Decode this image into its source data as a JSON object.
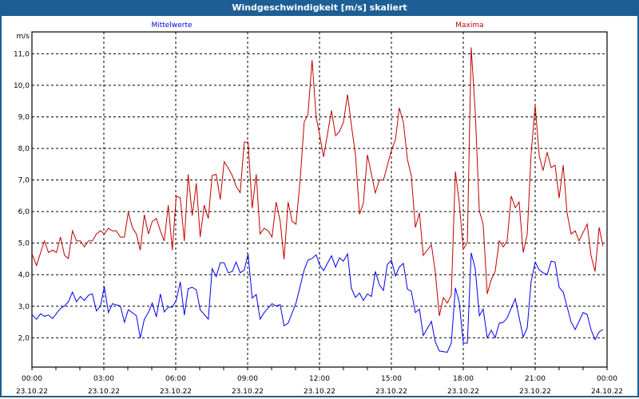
{
  "window": {
    "title": "Windgeschwindigkeit [m/s] skaliert"
  },
  "colors": {
    "titlebar": "#1d5f94",
    "mean": "#0000ee",
    "max": "#c00000"
  },
  "chart_data": {
    "type": "line",
    "title": "Windgeschwindigkeit [m/s] skaliert",
    "ylabel": "m/s",
    "xlabel": "",
    "ylim": [
      1.0,
      11.7
    ],
    "xlim_hours": [
      0,
      24
    ],
    "grid": true,
    "yticks": [
      "2,0",
      "3,0",
      "4,0",
      "5,0",
      "6,0",
      "7,0",
      "8,0",
      "9,0",
      "10,0",
      "11,0"
    ],
    "ytick_values": [
      2,
      3,
      4,
      5,
      6,
      7,
      8,
      9,
      10,
      11
    ],
    "xticks": [
      {
        "time": "00:00",
        "date": "23.10.22",
        "h": 0
      },
      {
        "time": "03:00",
        "date": "23.10.22",
        "h": 3
      },
      {
        "time": "06:00",
        "date": "23.10.22",
        "h": 6
      },
      {
        "time": "09:00",
        "date": "23.10.22",
        "h": 9
      },
      {
        "time": "12:00",
        "date": "23.10.22",
        "h": 12
      },
      {
        "time": "15:00",
        "date": "23.10.22",
        "h": 15
      },
      {
        "time": "18:00",
        "date": "23.10.22",
        "h": 18
      },
      {
        "time": "21:00",
        "date": "23.10.22",
        "h": 21
      },
      {
        "time": "00:00",
        "date": "24.10.22",
        "h": 24
      }
    ],
    "series": [
      {
        "name": "Mittelwerte",
        "color": "#0000ee",
        "points": [
          [
            0.02,
            2.72
          ],
          [
            0.19,
            2.59
          ],
          [
            0.36,
            2.76
          ],
          [
            0.52,
            2.68
          ],
          [
            0.69,
            2.72
          ],
          [
            0.86,
            2.61
          ],
          [
            1.19,
            2.93
          ],
          [
            1.36,
            3.01
          ],
          [
            1.52,
            3.14
          ],
          [
            1.69,
            3.45
          ],
          [
            1.86,
            3.14
          ],
          [
            2.02,
            3.31
          ],
          [
            2.19,
            3.18
          ],
          [
            2.36,
            3.35
          ],
          [
            2.52,
            3.39
          ],
          [
            2.69,
            2.85
          ],
          [
            2.86,
            3.01
          ],
          [
            3.02,
            3.62
          ],
          [
            3.19,
            2.8
          ],
          [
            3.36,
            3.08
          ],
          [
            3.69,
            3.01
          ],
          [
            3.86,
            2.49
          ],
          [
            4.02,
            2.89
          ],
          [
            4.36,
            2.7
          ],
          [
            4.52,
            1.99
          ],
          [
            4.69,
            2.59
          ],
          [
            4.86,
            2.8
          ],
          [
            5.02,
            3.1
          ],
          [
            5.19,
            2.66
          ],
          [
            5.36,
            3.39
          ],
          [
            5.52,
            2.82
          ],
          [
            5.69,
            2.97
          ],
          [
            5.86,
            2.97
          ],
          [
            6.02,
            3.18
          ],
          [
            6.19,
            3.77
          ],
          [
            6.36,
            2.72
          ],
          [
            6.52,
            3.56
          ],
          [
            6.69,
            3.6
          ],
          [
            6.86,
            3.52
          ],
          [
            7.02,
            2.89
          ],
          [
            7.36,
            2.59
          ],
          [
            7.52,
            4.19
          ],
          [
            7.69,
            3.94
          ],
          [
            7.86,
            4.38
          ],
          [
            8.02,
            4.38
          ],
          [
            8.19,
            4.06
          ],
          [
            8.36,
            4.1
          ],
          [
            8.52,
            4.4
          ],
          [
            8.69,
            4.06
          ],
          [
            8.86,
            4.15
          ],
          [
            9.02,
            4.65
          ],
          [
            9.19,
            3.26
          ],
          [
            9.36,
            3.37
          ],
          [
            9.52,
            2.59
          ],
          [
            9.69,
            2.8
          ],
          [
            10.02,
            3.08
          ],
          [
            10.19,
            3.01
          ],
          [
            10.36,
            3.05
          ],
          [
            10.52,
            2.38
          ],
          [
            10.69,
            2.46
          ],
          [
            11.02,
            3.1
          ],
          [
            11.36,
            4.15
          ],
          [
            11.52,
            4.46
          ],
          [
            11.69,
            4.51
          ],
          [
            11.86,
            4.63
          ],
          [
            12.0,
            4.32
          ],
          [
            12.17,
            4.13
          ],
          [
            12.5,
            4.6
          ],
          [
            12.67,
            4.24
          ],
          [
            12.83,
            4.53
          ],
          [
            13.0,
            4.43
          ],
          [
            13.17,
            4.66
          ],
          [
            13.33,
            3.57
          ],
          [
            13.5,
            3.28
          ],
          [
            13.67,
            3.42
          ],
          [
            13.83,
            3.18
          ],
          [
            14.0,
            3.39
          ],
          [
            14.17,
            3.31
          ],
          [
            14.33,
            4.1
          ],
          [
            14.5,
            3.68
          ],
          [
            14.67,
            3.5
          ],
          [
            14.83,
            4.32
          ],
          [
            15.0,
            4.46
          ],
          [
            15.17,
            3.96
          ],
          [
            15.33,
            4.24
          ],
          [
            15.5,
            4.36
          ],
          [
            15.67,
            3.54
          ],
          [
            15.83,
            3.48
          ],
          [
            16.0,
            2.8
          ],
          [
            16.17,
            2.91
          ],
          [
            16.33,
            2.07
          ],
          [
            16.67,
            2.52
          ],
          [
            16.83,
            1.88
          ],
          [
            17.0,
            1.58
          ],
          [
            17.33,
            1.54
          ],
          [
            17.5,
            1.83
          ],
          [
            17.67,
            3.58
          ],
          [
            17.83,
            3.14
          ],
          [
            18.0,
            1.83
          ],
          [
            18.17,
            1.83
          ],
          [
            18.33,
            4.69
          ],
          [
            18.5,
            4.19
          ],
          [
            18.67,
            2.7
          ],
          [
            18.83,
            2.91
          ],
          [
            19.0,
            2.0
          ],
          [
            19.17,
            2.24
          ],
          [
            19.33,
            2.0
          ],
          [
            19.5,
            2.46
          ],
          [
            19.67,
            2.49
          ],
          [
            19.83,
            2.63
          ],
          [
            20.17,
            3.24
          ],
          [
            20.5,
            2.02
          ],
          [
            20.67,
            2.32
          ],
          [
            20.83,
            3.77
          ],
          [
            21.0,
            4.4
          ],
          [
            21.17,
            4.15
          ],
          [
            21.33,
            4.06
          ],
          [
            21.5,
            4.0
          ],
          [
            21.67,
            4.43
          ],
          [
            21.83,
            4.4
          ],
          [
            22.0,
            3.6
          ],
          [
            22.17,
            3.45
          ],
          [
            22.5,
            2.5
          ],
          [
            22.67,
            2.26
          ],
          [
            23.0,
            2.8
          ],
          [
            23.17,
            2.74
          ],
          [
            23.33,
            2.26
          ],
          [
            23.5,
            1.94
          ],
          [
            23.67,
            2.19
          ],
          [
            23.83,
            2.26
          ]
        ]
      },
      {
        "name": "Maxima",
        "color": "#c00000",
        "points": [
          [
            0.02,
            4.63
          ],
          [
            0.19,
            4.29
          ],
          [
            0.52,
            5.07
          ],
          [
            0.69,
            4.7
          ],
          [
            0.86,
            4.78
          ],
          [
            1.02,
            4.7
          ],
          [
            1.19,
            5.19
          ],
          [
            1.36,
            4.61
          ],
          [
            1.52,
            4.51
          ],
          [
            1.69,
            5.39
          ],
          [
            1.86,
            5.07
          ],
          [
            2.02,
            5.07
          ],
          [
            2.19,
            4.88
          ],
          [
            2.36,
            5.07
          ],
          [
            2.52,
            5.07
          ],
          [
            2.69,
            5.29
          ],
          [
            2.86,
            5.39
          ],
          [
            3.02,
            5.29
          ],
          [
            3.19,
            5.47
          ],
          [
            3.36,
            5.39
          ],
          [
            3.52,
            5.39
          ],
          [
            3.69,
            5.19
          ],
          [
            3.86,
            5.19
          ],
          [
            4.02,
            5.98
          ],
          [
            4.19,
            5.5
          ],
          [
            4.36,
            5.29
          ],
          [
            4.52,
            4.78
          ],
          [
            4.69,
            5.9
          ],
          [
            4.86,
            5.29
          ],
          [
            5.02,
            5.69
          ],
          [
            5.19,
            5.78
          ],
          [
            5.36,
            5.39
          ],
          [
            5.52,
            5.07
          ],
          [
            5.69,
            6.2
          ],
          [
            5.86,
            4.78
          ],
          [
            6.02,
            6.49
          ],
          [
            6.19,
            6.43
          ],
          [
            6.36,
            5.07
          ],
          [
            6.52,
            7.18
          ],
          [
            6.69,
            5.87
          ],
          [
            6.86,
            6.9
          ],
          [
            7.02,
            5.19
          ],
          [
            7.19,
            6.2
          ],
          [
            7.36,
            5.78
          ],
          [
            7.52,
            7.14
          ],
          [
            7.69,
            7.18
          ],
          [
            7.86,
            6.38
          ],
          [
            8.02,
            7.58
          ],
          [
            8.19,
            7.38
          ],
          [
            8.36,
            7.14
          ],
          [
            8.52,
            6.8
          ],
          [
            8.69,
            6.6
          ],
          [
            8.86,
            8.2
          ],
          [
            9.02,
            8.2
          ],
          [
            9.19,
            6.1
          ],
          [
            9.36,
            7.18
          ],
          [
            9.52,
            5.29
          ],
          [
            9.69,
            5.47
          ],
          [
            9.86,
            5.39
          ],
          [
            10.02,
            5.19
          ],
          [
            10.19,
            6.3
          ],
          [
            10.36,
            5.69
          ],
          [
            10.52,
            4.49
          ],
          [
            10.69,
            6.3
          ],
          [
            10.86,
            5.69
          ],
          [
            11.02,
            5.6
          ],
          [
            11.19,
            6.97
          ],
          [
            11.36,
            8.83
          ],
          [
            11.52,
            9.08
          ],
          [
            11.69,
            10.8
          ],
          [
            11.86,
            9.0
          ],
          [
            12.0,
            8.45
          ],
          [
            12.17,
            7.73
          ],
          [
            12.5,
            9.2
          ],
          [
            12.67,
            8.4
          ],
          [
            12.83,
            8.53
          ],
          [
            13.0,
            8.83
          ],
          [
            13.17,
            9.71
          ],
          [
            13.33,
            8.74
          ],
          [
            13.5,
            7.81
          ],
          [
            13.67,
            5.92
          ],
          [
            13.83,
            6.26
          ],
          [
            14.0,
            7.8
          ],
          [
            14.33,
            6.59
          ],
          [
            14.5,
            7.0
          ],
          [
            14.67,
            7.0
          ],
          [
            15.0,
            7.94
          ],
          [
            15.17,
            8.28
          ],
          [
            15.33,
            9.29
          ],
          [
            15.5,
            8.83
          ],
          [
            15.67,
            7.65
          ],
          [
            15.83,
            7.14
          ],
          [
            16.0,
            5.5
          ],
          [
            16.17,
            5.96
          ],
          [
            16.33,
            4.61
          ],
          [
            16.67,
            4.95
          ],
          [
            16.83,
            4.1
          ],
          [
            17.0,
            2.69
          ],
          [
            17.17,
            3.28
          ],
          [
            17.33,
            3.1
          ],
          [
            17.5,
            3.35
          ],
          [
            17.67,
            7.27
          ],
          [
            17.83,
            6.3
          ],
          [
            18.0,
            4.8
          ],
          [
            18.17,
            5.03
          ],
          [
            18.33,
            11.2
          ],
          [
            18.5,
            9.14
          ],
          [
            18.67,
            6.02
          ],
          [
            18.83,
            5.6
          ],
          [
            19.0,
            3.39
          ],
          [
            19.17,
            3.85
          ],
          [
            19.33,
            4.1
          ],
          [
            19.5,
            5.07
          ],
          [
            19.67,
            4.88
          ],
          [
            19.83,
            5.07
          ],
          [
            20.0,
            6.49
          ],
          [
            20.17,
            6.12
          ],
          [
            20.33,
            6.3
          ],
          [
            20.5,
            4.7
          ],
          [
            20.67,
            5.29
          ],
          [
            20.83,
            7.81
          ],
          [
            21.0,
            9.37
          ],
          [
            21.17,
            7.77
          ],
          [
            21.33,
            7.3
          ],
          [
            21.5,
            7.88
          ],
          [
            21.67,
            7.39
          ],
          [
            21.83,
            7.47
          ],
          [
            22.0,
            6.43
          ],
          [
            22.17,
            7.47
          ],
          [
            22.33,
            5.96
          ],
          [
            22.5,
            5.29
          ],
          [
            22.67,
            5.39
          ],
          [
            22.83,
            5.07
          ],
          [
            23.17,
            5.6
          ],
          [
            23.33,
            4.61
          ],
          [
            23.5,
            4.1
          ],
          [
            23.67,
            5.5
          ],
          [
            23.83,
            4.9
          ]
        ]
      }
    ]
  }
}
